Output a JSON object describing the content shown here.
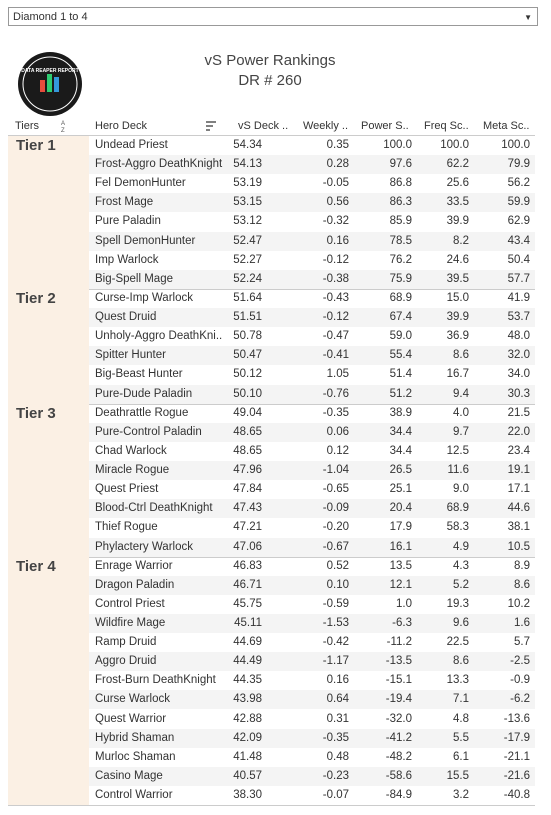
{
  "filter": "Diamond 1 to 4",
  "logo": "DATA REAPER REPORT",
  "header": {
    "title": "vS Power Rankings",
    "subtitle": "DR # 260"
  },
  "table": {
    "columns": [
      "Tiers",
      "Hero Deck",
      "vS Deck ..",
      "Weekly ..",
      "Power S..",
      "Freq Sc..",
      "Meta Sc.."
    ],
    "tiers": [
      {
        "name": "Tier 1",
        "rows": [
          [
            "Undead Priest",
            "54.34",
            "0.35",
            "100.0",
            "100.0",
            "100.0"
          ],
          [
            "Frost-Aggro DeathKnight",
            "54.13",
            "0.28",
            "97.6",
            "62.2",
            "79.9"
          ],
          [
            "Fel DemonHunter",
            "53.19",
            "-0.05",
            "86.8",
            "25.6",
            "56.2"
          ],
          [
            "Frost Mage",
            "53.15",
            "0.56",
            "86.3",
            "33.5",
            "59.9"
          ],
          [
            "Pure Paladin",
            "53.12",
            "-0.32",
            "85.9",
            "39.9",
            "62.9"
          ],
          [
            "Spell DemonHunter",
            "52.47",
            "0.16",
            "78.5",
            "8.2",
            "43.4"
          ],
          [
            "Imp Warlock",
            "52.27",
            "-0.12",
            "76.2",
            "24.6",
            "50.4"
          ],
          [
            "Big-Spell Mage",
            "52.24",
            "-0.38",
            "75.9",
            "39.5",
            "57.7"
          ]
        ]
      },
      {
        "name": "Tier 2",
        "rows": [
          [
            "Curse-Imp Warlock",
            "51.64",
            "-0.43",
            "68.9",
            "15.0",
            "41.9"
          ],
          [
            "Quest Druid",
            "51.51",
            "-0.12",
            "67.4",
            "39.9",
            "53.7"
          ],
          [
            "Unholy-Aggro DeathKni..",
            "50.78",
            "-0.47",
            "59.0",
            "36.9",
            "48.0"
          ],
          [
            "Spitter Hunter",
            "50.47",
            "-0.41",
            "55.4",
            "8.6",
            "32.0"
          ],
          [
            "Big-Beast Hunter",
            "50.12",
            "1.05",
            "51.4",
            "16.7",
            "34.0"
          ],
          [
            "Pure-Dude Paladin",
            "50.10",
            "-0.76",
            "51.2",
            "9.4",
            "30.3"
          ]
        ]
      },
      {
        "name": "Tier 3",
        "rows": [
          [
            "Deathrattle Rogue",
            "49.04",
            "-0.35",
            "38.9",
            "4.0",
            "21.5"
          ],
          [
            "Pure-Control Paladin",
            "48.65",
            "0.06",
            "34.4",
            "9.7",
            "22.0"
          ],
          [
            "Chad Warlock",
            "48.65",
            "0.12",
            "34.4",
            "12.5",
            "23.4"
          ],
          [
            "Miracle Rogue",
            "47.96",
            "-1.04",
            "26.5",
            "11.6",
            "19.1"
          ],
          [
            "Quest Priest",
            "47.84",
            "-0.65",
            "25.1",
            "9.0",
            "17.1"
          ],
          [
            "Blood-Ctrl DeathKnight",
            "47.43",
            "-0.09",
            "20.4",
            "68.9",
            "44.6"
          ],
          [
            "Thief Rogue",
            "47.21",
            "-0.20",
            "17.9",
            "58.3",
            "38.1"
          ],
          [
            "Phylactery Warlock",
            "47.06",
            "-0.67",
            "16.1",
            "4.9",
            "10.5"
          ]
        ]
      },
      {
        "name": "Tier 4",
        "rows": [
          [
            "Enrage Warrior",
            "46.83",
            "0.52",
            "13.5",
            "4.3",
            "8.9"
          ],
          [
            "Dragon Paladin",
            "46.71",
            "0.10",
            "12.1",
            "5.2",
            "8.6"
          ],
          [
            "Control Priest",
            "45.75",
            "-0.59",
            "1.0",
            "19.3",
            "10.2"
          ],
          [
            "Wildfire Mage",
            "45.11",
            "-1.53",
            "-6.3",
            "9.6",
            "1.6"
          ],
          [
            "Ramp Druid",
            "44.69",
            "-0.42",
            "-11.2",
            "22.5",
            "5.7"
          ],
          [
            "Aggro Druid",
            "44.49",
            "-1.17",
            "-13.5",
            "8.6",
            "-2.5"
          ],
          [
            "Frost-Burn DeathKnight",
            "44.35",
            "0.16",
            "-15.1",
            "13.3",
            "-0.9"
          ],
          [
            "Curse Warlock",
            "43.98",
            "0.64",
            "-19.4",
            "7.1",
            "-6.2"
          ],
          [
            "Quest Warrior",
            "42.88",
            "0.31",
            "-32.0",
            "4.8",
            "-13.6"
          ],
          [
            "Hybrid Shaman",
            "42.09",
            "-0.35",
            "-41.2",
            "5.5",
            "-17.9"
          ],
          [
            "Murloc Shaman",
            "41.48",
            "0.48",
            "-48.2",
            "6.1",
            "-21.1"
          ],
          [
            "Casino Mage",
            "40.57",
            "-0.23",
            "-58.6",
            "15.5",
            "-21.6"
          ],
          [
            "Control Warrior",
            "38.30",
            "-0.07",
            "-84.9",
            "3.2",
            "-40.8"
          ]
        ]
      }
    ]
  }
}
